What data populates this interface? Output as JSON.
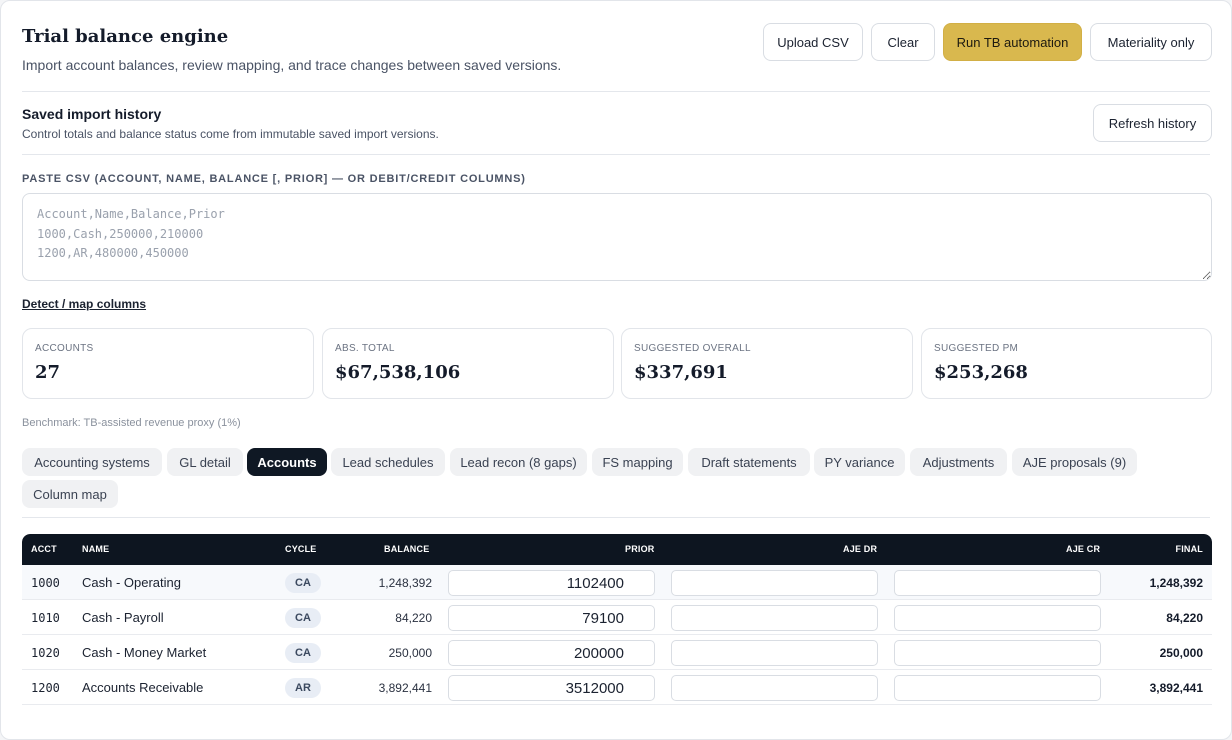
{
  "header": {
    "title": "Trial balance engine",
    "subtitle": "Import account balances, review mapping, and trace changes between saved versions.",
    "buttons": {
      "upload": "Upload CSV",
      "clear": "Clear",
      "run": "Run TB automation",
      "materiality": "Materiality only"
    },
    "accent_color": "#d9b84e"
  },
  "history": {
    "title": "Saved import history",
    "subtitle": "Control totals and balance status come from immutable saved import versions.",
    "refresh_label": "Refresh history"
  },
  "csv": {
    "label": "PASTE CSV (ACCOUNT, NAME, BALANCE [, PRIOR] — OR DEBIT/CREDIT COLUMNS)",
    "placeholder": "Account,Name,Balance,Prior\n1000,Cash,250000,210000\n1200,AR,480000,450000",
    "value": "",
    "detect_link": "Detect / map columns"
  },
  "stats": [
    {
      "label": "ACCOUNTS",
      "value": "27"
    },
    {
      "label": "ABS. TOTAL",
      "value": "$67,538,106"
    },
    {
      "label": "SUGGESTED OVERALL",
      "value": "$337,691"
    },
    {
      "label": "SUGGESTED PM",
      "value": "$253,268"
    }
  ],
  "benchmark": "Benchmark: TB-assisted revenue proxy (1%)",
  "tabs": [
    {
      "label": "Accounting systems"
    },
    {
      "label": "GL detail"
    },
    {
      "label": "Accounts",
      "active": true
    },
    {
      "label": "Lead schedules"
    },
    {
      "label": "Lead recon (8 gaps)"
    },
    {
      "label": "FS mapping"
    },
    {
      "label": "Draft statements"
    },
    {
      "label": "PY variance"
    },
    {
      "label": "Adjustments"
    },
    {
      "label": "AJE proposals (9)"
    },
    {
      "label": "Column map"
    }
  ],
  "table": {
    "columns": [
      "ACCT",
      "NAME",
      "CYCLE",
      "BALANCE",
      "PRIOR",
      "AJE DR",
      "AJE CR",
      "FINAL"
    ],
    "rows": [
      {
        "acct": "1000",
        "name": "Cash - Operating",
        "cycle": "CA",
        "balance": "1,248,392",
        "prior": "1102400",
        "aje_dr": "",
        "aje_cr": "",
        "final": "1,248,392"
      },
      {
        "acct": "1010",
        "name": "Cash - Payroll",
        "cycle": "CA",
        "balance": "84,220",
        "prior": "79100",
        "aje_dr": "",
        "aje_cr": "",
        "final": "84,220"
      },
      {
        "acct": "1020",
        "name": "Cash - Money Market",
        "cycle": "CA",
        "balance": "250,000",
        "prior": "200000",
        "aje_dr": "",
        "aje_cr": "",
        "final": "250,000"
      },
      {
        "acct": "1200",
        "name": "Accounts Receivable",
        "cycle": "AR",
        "balance": "3,892,441",
        "prior": "3512000",
        "aje_dr": "",
        "aje_cr": "",
        "final": "3,892,441"
      }
    ]
  }
}
